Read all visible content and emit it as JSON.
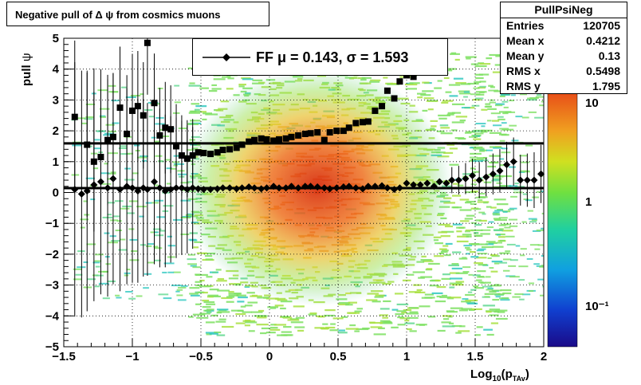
{
  "title": "Negative pull of Δ ψ from cosmics muons",
  "stats": {
    "name": "PullPsiNeg",
    "rows": [
      {
        "label": "Entries",
        "value": "120705"
      },
      {
        "label": "Mean x",
        "value": "0.4212"
      },
      {
        "label": "Mean y",
        "value": "0.13"
      },
      {
        "label": "RMS x",
        "value": "0.5498"
      },
      {
        "label": "RMS y",
        "value": "1.795"
      }
    ]
  },
  "legend": {
    "text": "FF μ =  0.143, σ =   1.593"
  },
  "chart_data": {
    "type": "scatter",
    "xlabel": "Log10(pTAv)",
    "ylabel": "pull ψ",
    "xlim": [
      -1.5,
      2
    ],
    "ylim": [
      -5,
      5
    ],
    "xticks": [
      "−1.5",
      "−1",
      "−0.5",
      "0",
      "0.5",
      "1",
      "1.5",
      "2"
    ],
    "yticks": [
      "−5",
      "−4",
      "−3",
      "−2",
      "−1",
      "0",
      "1",
      "2",
      "3",
      "4",
      "5"
    ],
    "colorbar": {
      "scale": "log",
      "ticks": [
        "10",
        "1",
        "10⁻¹"
      ]
    },
    "grid": true,
    "fit_lines": [
      {
        "name": "mean",
        "y": 0.143
      },
      {
        "name": "sigma",
        "y": 1.593
      }
    ],
    "series": [
      {
        "name": "sigma",
        "marker": "square",
        "x": [
          -1.42,
          -1.37,
          -1.33,
          -1.28,
          -1.23,
          -1.18,
          -1.14,
          -1.09,
          -1.04,
          -1.0,
          -0.96,
          -0.92,
          -0.89,
          -0.84,
          -0.8,
          -0.76,
          -0.72,
          -0.68,
          -0.64,
          -0.6,
          -0.56,
          -0.52,
          -0.48,
          -0.43,
          -0.38,
          -0.34,
          -0.29,
          -0.24,
          -0.2,
          -0.15,
          -0.11,
          -0.06,
          -0.02,
          0.03,
          0.07,
          0.12,
          0.16,
          0.21,
          0.26,
          0.3,
          0.35,
          0.4,
          0.44,
          0.49,
          0.54,
          0.58,
          0.63,
          0.68,
          0.72,
          0.77,
          0.82,
          0.86,
          0.91,
          0.95,
          1.0,
          1.05,
          1.1,
          1.15,
          1.2,
          1.24,
          1.29,
          1.33,
          1.38,
          1.43,
          1.48,
          1.53,
          1.58,
          1.63,
          1.68,
          1.73,
          1.78,
          1.83,
          1.88,
          1.93,
          1.98
        ],
        "y": [
          2.45,
          null,
          1.55,
          1.0,
          1.15,
          1.7,
          1.8,
          2.75,
          1.9,
          2.65,
          2.8,
          2.5,
          4.85,
          2.9,
          1.85,
          2.1,
          2.05,
          1.5,
          1.2,
          1.1,
          1.2,
          1.3,
          1.28,
          1.25,
          1.3,
          1.38,
          1.4,
          1.45,
          1.55,
          1.65,
          1.7,
          1.75,
          1.72,
          1.68,
          1.72,
          1.75,
          1.8,
          1.85,
          1.9,
          1.92,
          1.95,
          1.7,
          1.95,
          2.0,
          2.0,
          2.1,
          2.25,
          2.28,
          2.3,
          2.65,
          2.8,
          3.3,
          3.05,
          3.6,
          3.8,
          3.75,
          null,
          null,
          null,
          null,
          null,
          null,
          null,
          null,
          null,
          null,
          null,
          null,
          null,
          null,
          null,
          null,
          null,
          null,
          null
        ]
      },
      {
        "name": "mean",
        "marker": "diamond",
        "x": [
          -1.42,
          -1.37,
          -1.33,
          -1.28,
          -1.23,
          -1.18,
          -1.14,
          -1.09,
          -1.04,
          -1.0,
          -0.96,
          -0.92,
          -0.89,
          -0.84,
          -0.8,
          -0.76,
          -0.72,
          -0.68,
          -0.64,
          -0.6,
          -0.56,
          -0.52,
          -0.48,
          -0.43,
          -0.38,
          -0.34,
          -0.29,
          -0.24,
          -0.2,
          -0.15,
          -0.11,
          -0.06,
          -0.02,
          0.03,
          0.07,
          0.12,
          0.16,
          0.21,
          0.26,
          0.3,
          0.35,
          0.4,
          0.44,
          0.49,
          0.54,
          0.58,
          0.63,
          0.68,
          0.72,
          0.77,
          0.82,
          0.86,
          0.91,
          0.95,
          1.0,
          1.05,
          1.1,
          1.15,
          1.2,
          1.24,
          1.29,
          1.33,
          1.38,
          1.43,
          1.48,
          1.53,
          1.58,
          1.63,
          1.68,
          1.73,
          1.78,
          1.83,
          1.88,
          1.93,
          1.98
        ],
        "y": [
          0.1,
          -0.05,
          0.05,
          0.25,
          0.35,
          0.15,
          0.45,
          0.1,
          0.2,
          0.15,
          0.05,
          0.15,
          0.1,
          0.35,
          0.15,
          0.05,
          0.1,
          0.15,
          0.15,
          0.1,
          0.15,
          0.12,
          0.1,
          0.1,
          0.12,
          0.15,
          0.15,
          0.12,
          0.15,
          0.18,
          0.15,
          0.12,
          0.15,
          0.2,
          0.15,
          0.15,
          0.2,
          0.15,
          0.2,
          0.2,
          0.18,
          0.15,
          0.12,
          0.15,
          0.18,
          0.2,
          0.15,
          0.12,
          0.2,
          0.2,
          0.22,
          0.15,
          0.1,
          0.15,
          0.3,
          0.25,
          0.25,
          0.3,
          0.2,
          0.35,
          0.3,
          0.4,
          0.4,
          0.45,
          0.55,
          0.4,
          0.5,
          0.6,
          0.7,
          0.9,
          1.0,
          0.4,
          0.4,
          0.4,
          0.6
        ]
      }
    ]
  }
}
